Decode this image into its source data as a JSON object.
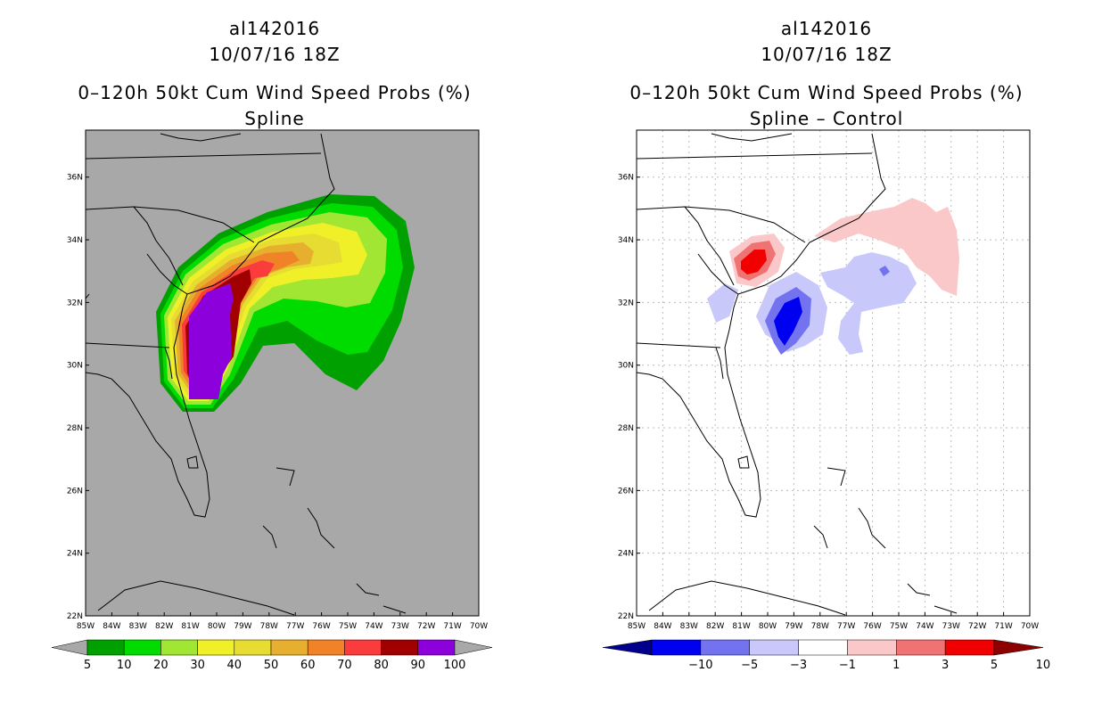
{
  "left_panel": {
    "storm_id": "al142016",
    "datetime": "10/07/16 18Z",
    "product": "0–120h 50kt Cum Wind Speed Probs (%)",
    "subtitle": "Spline",
    "lon_ticks": [
      "85W",
      "84W",
      "83W",
      "82W",
      "81W",
      "80W",
      "79W",
      "78W",
      "77W",
      "76W",
      "75W",
      "74W",
      "73W",
      "72W",
      "71W",
      "70W"
    ],
    "lat_ticks": [
      "36N",
      "34N",
      "32N",
      "30N",
      "28N",
      "26N",
      "24N",
      "22N"
    ],
    "colorbar": {
      "labels": [
        "5",
        "10",
        "20",
        "30",
        "40",
        "50",
        "60",
        "70",
        "80",
        "90",
        "100"
      ],
      "colors": [
        "#00a000",
        "#00dc00",
        "#a0e632",
        "#f0f028",
        "#e6dc32",
        "#e6af2d",
        "#f08228",
        "#fa3c3c",
        "#a00000",
        "#8c00dc"
      ]
    }
  },
  "right_panel": {
    "storm_id": "al142016",
    "datetime": "10/07/16 18Z",
    "product": "0–120h 50kt Cum Wind Speed Probs (%)",
    "subtitle": "Spline – Control",
    "lon_ticks": [
      "85W",
      "84W",
      "83W",
      "82W",
      "81W",
      "80W",
      "79W",
      "78W",
      "77W",
      "76W",
      "75W",
      "74W",
      "73W",
      "72W",
      "71W",
      "70W"
    ],
    "lat_ticks": [
      "36N",
      "34N",
      "32N",
      "30N",
      "28N",
      "26N",
      "24N",
      "22N"
    ],
    "colorbar": {
      "labels": [
        "−10",
        "−5",
        "−3",
        "−1",
        "1",
        "3",
        "5",
        "10"
      ],
      "colors": [
        "#00008c",
        "#0000f0",
        "#7373f0",
        "#c8c8fa",
        "#ffffff",
        "#fac8c8",
        "#f07373",
        "#f00000",
        "#8c0000"
      ]
    }
  }
}
